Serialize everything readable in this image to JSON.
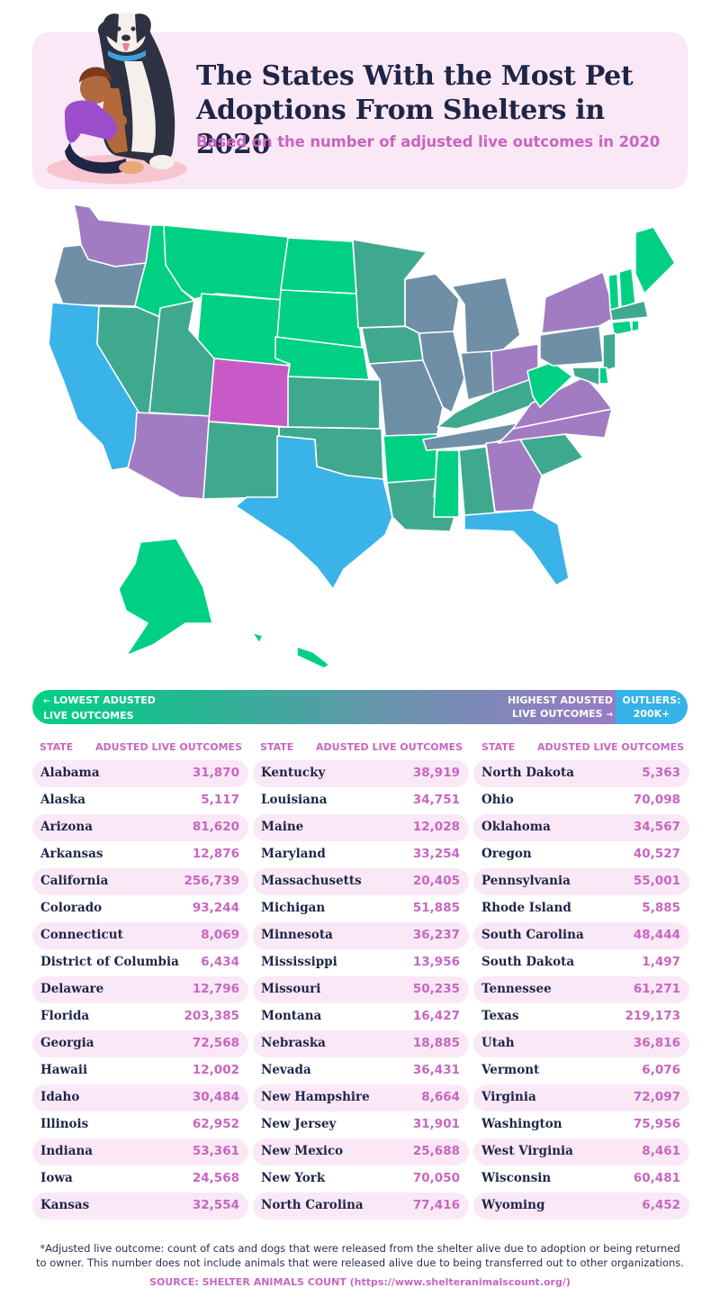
{
  "header": {
    "title": "The States With the Most Pet Adoptions From Shelters in 2020",
    "subtitle": "Based on the number of adjusted live outcomes in 2020"
  },
  "colors": {
    "lowest": "#00d084",
    "teal": "#3fa98f",
    "slate": "#6f8fa6",
    "lavender": "#a27cc2",
    "magenta": "#c85ac8",
    "outlier": "#3ab3e8",
    "accent_pink": "#c865c2",
    "navy_text": "#1f2547",
    "panel_pink": "#fae8f6"
  },
  "map_states": {
    "WA": "lavender",
    "OR": "slate",
    "CA": "outlier",
    "NV": "teal",
    "ID": "lowest",
    "MT": "lowest",
    "WY": "lowest",
    "UT": "teal",
    "AZ": "lavender",
    "CO": "magenta",
    "NM": "teal",
    "ND": "lowest",
    "SD": "lowest",
    "NE": "lowest",
    "KS": "teal",
    "OK": "teal",
    "TX": "outlier",
    "MN": "teal",
    "IA": "teal",
    "MO": "slate",
    "AR": "lowest",
    "LA": "teal",
    "WI": "slate",
    "IL": "slate",
    "MI": "slate",
    "IN": "slate",
    "OH": "lavender",
    "KY": "teal",
    "TN": "slate",
    "MS": "lowest",
    "AL": "teal",
    "GA": "lavender",
    "FL": "outlier",
    "SC": "teal",
    "NC": "lavender",
    "VA": "lavender",
    "WV": "lowest",
    "PA": "slate",
    "NY": "lavender",
    "ME": "lowest",
    "VT": "lowest",
    "NH": "lowest",
    "MA": "teal",
    "CT": "lowest",
    "RI": "lowest",
    "NJ": "teal",
    "DE": "lowest",
    "MD": "teal",
    "AK": "lowest",
    "HI": "lowest"
  },
  "legend": {
    "lowest_label_1": "LOWEST ADUSTED",
    "lowest_label_2": "LIVE OUTCOMES",
    "highest_label_1": "HIGHEST ADUSTED",
    "highest_label_2": "LIVE OUTCOMES",
    "outliers_label_1": "OUTLIERS:",
    "outliers_label_2": "200K+"
  },
  "table": {
    "state_header": "STATE",
    "value_header": "ADUSTED LIVE OUTCOMES",
    "rows": [
      {
        "state": "Alabama",
        "value": "31,870"
      },
      {
        "state": "Alaska",
        "value": "5,117"
      },
      {
        "state": "Arizona",
        "value": "81,620"
      },
      {
        "state": "Arkansas",
        "value": "12,876"
      },
      {
        "state": "California",
        "value": "256,739"
      },
      {
        "state": "Colorado",
        "value": "93,244"
      },
      {
        "state": "Connecticut",
        "value": "8,069"
      },
      {
        "state": "District of Columbia",
        "value": "6,434"
      },
      {
        "state": "Delaware",
        "value": "12,796"
      },
      {
        "state": "Florida",
        "value": "203,385"
      },
      {
        "state": "Georgia",
        "value": "72,568"
      },
      {
        "state": "Hawaii",
        "value": "12,002"
      },
      {
        "state": "Idaho",
        "value": "30,484"
      },
      {
        "state": "Illinois",
        "value": "62,952"
      },
      {
        "state": "Indiana",
        "value": "53,361"
      },
      {
        "state": "Iowa",
        "value": "24,568"
      },
      {
        "state": "Kansas",
        "value": "32,554"
      },
      {
        "state": "Kentucky",
        "value": "38,919"
      },
      {
        "state": "Louisiana",
        "value": "34,751"
      },
      {
        "state": "Maine",
        "value": "12,028"
      },
      {
        "state": "Maryland",
        "value": "33,254"
      },
      {
        "state": "Massachusetts",
        "value": "20,405"
      },
      {
        "state": "Michigan",
        "value": "51,885"
      },
      {
        "state": "Minnesota",
        "value": "36,237"
      },
      {
        "state": "Mississippi",
        "value": "13,956"
      },
      {
        "state": "Missouri",
        "value": "50,235"
      },
      {
        "state": "Montana",
        "value": "16,427"
      },
      {
        "state": "Nebraska",
        "value": "18,885"
      },
      {
        "state": "Nevada",
        "value": "36,431"
      },
      {
        "state": "New Hampshire",
        "value": "8,664"
      },
      {
        "state": "New Jersey",
        "value": "31,901"
      },
      {
        "state": "New Mexico",
        "value": "25,688"
      },
      {
        "state": "New York",
        "value": "70,050"
      },
      {
        "state": "North Carolina",
        "value": "77,416"
      },
      {
        "state": "North Dakota",
        "value": "5,363"
      },
      {
        "state": "Ohio",
        "value": "70,098"
      },
      {
        "state": "Oklahoma",
        "value": "34,567"
      },
      {
        "state": "Oregon",
        "value": "40,527"
      },
      {
        "state": "Pennsylvania",
        "value": "55,001"
      },
      {
        "state": "Rhode Island",
        "value": "5,885"
      },
      {
        "state": "South Carolina",
        "value": "48,444"
      },
      {
        "state": "South Dakota",
        "value": "1,497"
      },
      {
        "state": "Tennessee",
        "value": "61,271"
      },
      {
        "state": "Texas",
        "value": "219,173"
      },
      {
        "state": "Utah",
        "value": "36,816"
      },
      {
        "state": "Vermont",
        "value": "6,076"
      },
      {
        "state": "Virginia",
        "value": "72,097"
      },
      {
        "state": "Washington",
        "value": "75,956"
      },
      {
        "state": "West Virginia",
        "value": "8,461"
      },
      {
        "state": "Wisconsin",
        "value": "60,481"
      },
      {
        "state": "Wyoming",
        "value": "6,452"
      }
    ]
  },
  "footnote": {
    "line1": "*Adjusted live outcome: count of cats and dogs that were released from the shelter alive due to adoption or being returned",
    "line2": "to owner. This number does not include animals that were released alive due to being transferred out to other organizations.",
    "source": "SOURCE: SHELTER ANIMALS COUNT (https://www.shelteranimalscount.org/)"
  }
}
